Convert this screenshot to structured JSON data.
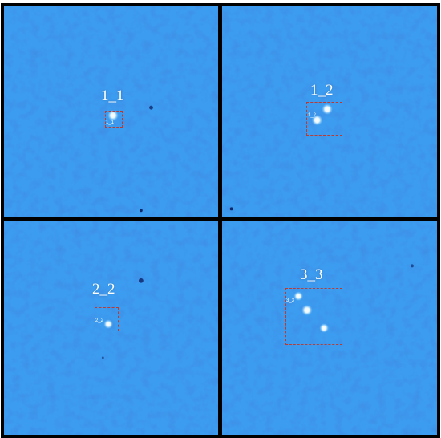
{
  "colors": {
    "background": "#3c9cf0",
    "frame": "#000000",
    "box": "#c0392b",
    "label": "#ffffff"
  },
  "panels": [
    {
      "label": "1_1",
      "tag": "1_1"
    },
    {
      "label": "1_2",
      "tag": "1_2"
    },
    {
      "label": "2_2",
      "tag": "2_2"
    },
    {
      "label": "3_3",
      "tag": "3_3"
    }
  ]
}
